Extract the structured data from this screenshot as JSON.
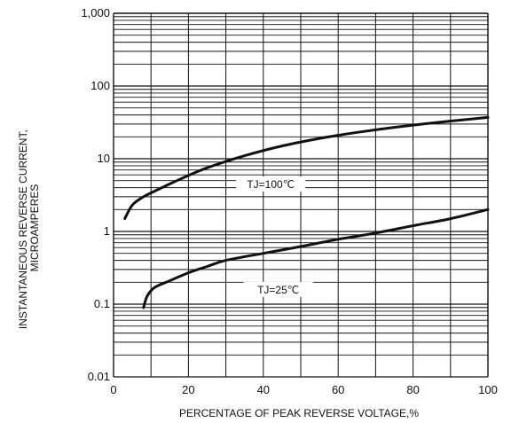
{
  "chart_data": {
    "type": "line",
    "xlabel": "PERCENTAGE OF PEAK REVERSE VOLTAGE,%",
    "ylabel_lines": [
      "INSTANTANEOUS REVERSE CURRENT,",
      "MICROAMPERES"
    ],
    "x_scale": "linear",
    "y_scale": "log",
    "xlim": [
      0,
      100
    ],
    "ylim": [
      0.01,
      1000
    ],
    "x_ticks": [
      0,
      20,
      40,
      60,
      80,
      100
    ],
    "x_tick_labels": [
      "0",
      "20",
      "40",
      "60",
      "80",
      "100"
    ],
    "y_ticks": [
      0.01,
      0.1,
      1,
      10,
      100,
      1000
    ],
    "y_tick_labels": [
      "0.01",
      "0.1",
      "1",
      "10",
      "100",
      "1,000"
    ],
    "grid": true,
    "series": [
      {
        "name": "TJ=100℃",
        "x": [
          3,
          5,
          8,
          12,
          18,
          25,
          35,
          45,
          55,
          65,
          75,
          85,
          100
        ],
        "y": [
          1.5,
          2.3,
          3.0,
          3.8,
          5.3,
          7.5,
          11,
          15,
          19,
          23,
          27,
          31,
          37
        ]
      },
      {
        "name": "TJ=25℃",
        "x": [
          8,
          9,
          11,
          15,
          20,
          25,
          30,
          40,
          50,
          60,
          70,
          80,
          90,
          100
        ],
        "y": [
          0.09,
          0.13,
          0.17,
          0.21,
          0.27,
          0.33,
          0.4,
          0.5,
          0.62,
          0.78,
          0.95,
          1.2,
          1.5,
          2.0
        ]
      }
    ],
    "colors": {
      "grid": "#111111",
      "line": "#111111",
      "background": "#ffffff"
    }
  }
}
